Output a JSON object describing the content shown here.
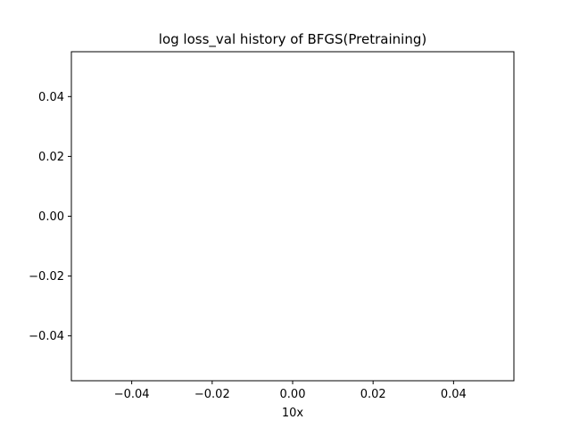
{
  "chart_data": {
    "type": "line",
    "title": "log loss_val history of BFGS(Pretraining)",
    "xlabel": "10x",
    "ylabel": "",
    "xlim": [
      -0.055,
      0.055
    ],
    "ylim": [
      -0.055,
      0.055
    ],
    "xticks": [
      -0.04,
      -0.02,
      0.0,
      0.02,
      0.04
    ],
    "xtick_labels": [
      "−0.04",
      "−0.02",
      "0.00",
      "0.02",
      "0.04"
    ],
    "yticks": [
      -0.04,
      -0.02,
      0.0,
      0.02,
      0.04
    ],
    "ytick_labels": [
      "−0.04",
      "−0.02",
      "0.00",
      "0.02",
      "0.04"
    ],
    "grid": false,
    "series": []
  }
}
